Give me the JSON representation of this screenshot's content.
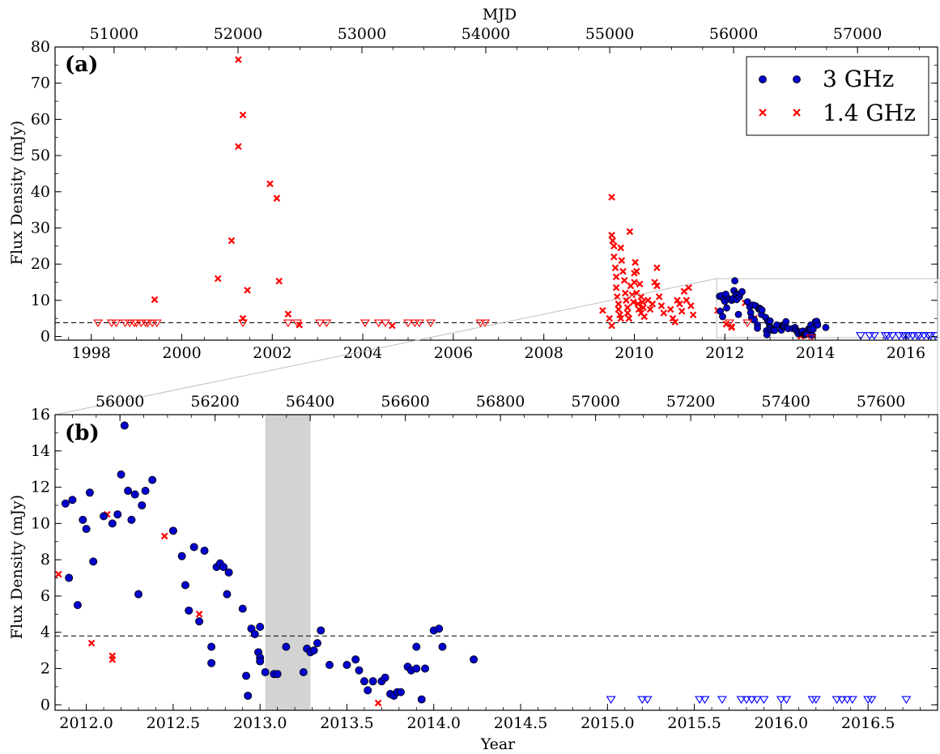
{
  "chart_data": [
    {
      "panel": "(a)",
      "type": "scatter",
      "xlabel": "",
      "ylabel": "Flux Density (mJy)",
      "top_xlabel": "MJD",
      "xlim": [
        1997.2,
        2016.7
      ],
      "ylim": [
        -1,
        80
      ],
      "top_xlim": [
        50509,
        57630
      ],
      "x_ticks": [
        1998,
        2000,
        2002,
        2004,
        2006,
        2008,
        2010,
        2012,
        2014,
        2016
      ],
      "y_ticks": [
        0,
        10,
        20,
        30,
        40,
        50,
        60,
        70,
        80
      ],
      "top_ticks": [
        51000,
        52000,
        53000,
        54000,
        55000,
        56000,
        57000
      ],
      "threshold": 3.8,
      "legend": {
        "position": "top-right",
        "entries": [
          {
            "label": "3 GHz",
            "color": "#0000cc",
            "marker": "circle"
          },
          {
            "label": "1.4 GHz",
            "color": "#ff0000",
            "marker": "x"
          }
        ]
      },
      "series": [
        {
          "name": "1.4 GHz",
          "marker": "x",
          "color": "#ff0000",
          "points": [
            [
              1999.4,
              10.2
            ],
            [
              2000.8,
              16.0
            ],
            [
              2001.1,
              26.5
            ],
            [
              2001.25,
              76.5
            ],
            [
              2001.25,
              52.5
            ],
            [
              2001.35,
              61.2
            ],
            [
              2001.35,
              5.0
            ],
            [
              2001.45,
              12.8
            ],
            [
              2001.95,
              42.2
            ],
            [
              2002.1,
              38.2
            ],
            [
              2002.15,
              15.3
            ],
            [
              2002.35,
              6.2
            ],
            [
              2002.6,
              3.2
            ],
            [
              2004.65,
              3.0
            ],
            [
              2009.3,
              7.2
            ],
            [
              2009.45,
              5.0
            ],
            [
              2009.5,
              3.0
            ],
            [
              2009.5,
              38.5
            ],
            [
              2009.5,
              28.0
            ],
            [
              2009.52,
              26.5
            ],
            [
              2009.55,
              25.0
            ],
            [
              2009.55,
              22.0
            ],
            [
              2009.58,
              19.0
            ],
            [
              2009.6,
              16.5
            ],
            [
              2009.6,
              13.5
            ],
            [
              2009.62,
              11.0
            ],
            [
              2009.65,
              9.0
            ],
            [
              2009.65,
              7.5
            ],
            [
              2009.68,
              6.0
            ],
            [
              2009.7,
              5.0
            ],
            [
              2009.7,
              24.5
            ],
            [
              2009.72,
              21.0
            ],
            [
              2009.75,
              18.0
            ],
            [
              2009.78,
              15.5
            ],
            [
              2009.8,
              12.0
            ],
            [
              2009.82,
              10.0
            ],
            [
              2009.85,
              8.0
            ],
            [
              2009.85,
              6.5
            ],
            [
              2009.88,
              5.0
            ],
            [
              2009.9,
              29.0
            ],
            [
              2009.92,
              14.0
            ],
            [
              2009.95,
              11.5
            ],
            [
              2009.98,
              9.5
            ],
            [
              2010.0,
              17.5
            ],
            [
              2010.0,
              15.0
            ],
            [
              2010.02,
              20.5
            ],
            [
              2010.05,
              18.0
            ],
            [
              2010.05,
              12.0
            ],
            [
              2010.08,
              9.0
            ],
            [
              2010.1,
              7.5
            ],
            [
              2010.12,
              14.5
            ],
            [
              2010.15,
              11.0
            ],
            [
              2010.15,
              6.5
            ],
            [
              2010.18,
              9.5
            ],
            [
              2010.2,
              8.0
            ],
            [
              2010.22,
              5.5
            ],
            [
              2010.3,
              10.0
            ],
            [
              2010.35,
              7.5
            ],
            [
              2010.4,
              9.0
            ],
            [
              2010.45,
              15.0
            ],
            [
              2010.5,
              19.0
            ],
            [
              2010.5,
              14.0
            ],
            [
              2010.55,
              11.0
            ],
            [
              2010.6,
              8.5
            ],
            [
              2010.65,
              6.5
            ],
            [
              2010.8,
              7.5
            ],
            [
              2010.85,
              5.0
            ],
            [
              2010.9,
              4.0
            ],
            [
              2010.95,
              10.0
            ],
            [
              2011.0,
              9.0
            ],
            [
              2011.05,
              7.0
            ],
            [
              2011.1,
              12.5
            ],
            [
              2011.15,
              10.0
            ],
            [
              2011.2,
              13.5
            ],
            [
              2011.25,
              8.5
            ],
            [
              2011.3,
              6.0
            ],
            [
              2011.84,
              7.2
            ],
            [
              2012.03,
              3.4
            ],
            [
              2012.12,
              10.5
            ],
            [
              2012.15,
              2.7
            ],
            [
              2012.15,
              2.5
            ],
            [
              2012.45,
              9.3
            ],
            [
              2012.65,
              5.0
            ],
            [
              2013.68,
              0.1
            ]
          ]
        },
        {
          "name": "3 GHz",
          "marker": "circle",
          "color": "#0000cc",
          "points": [
            [
              2011.88,
              11.1
            ],
            [
              2011.9,
              7.0
            ],
            [
              2011.92,
              11.3
            ],
            [
              2011.95,
              5.5
            ],
            [
              2011.98,
              10.2
            ],
            [
              2012.0,
              9.7
            ],
            [
              2012.02,
              11.7
            ],
            [
              2012.04,
              7.9
            ],
            [
              2012.1,
              10.4
            ],
            [
              2012.15,
              10.0
            ],
            [
              2012.18,
              10.5
            ],
            [
              2012.2,
              12.7
            ],
            [
              2012.22,
              15.4
            ],
            [
              2012.24,
              11.8
            ],
            [
              2012.26,
              10.2
            ],
            [
              2012.28,
              11.6
            ],
            [
              2012.3,
              6.1
            ],
            [
              2012.32,
              11.0
            ],
            [
              2012.34,
              11.8
            ],
            [
              2012.38,
              12.4
            ],
            [
              2012.5,
              9.6
            ],
            [
              2012.55,
              8.2
            ],
            [
              2012.57,
              6.6
            ],
            [
              2012.59,
              5.2
            ],
            [
              2012.62,
              8.7
            ],
            [
              2012.65,
              4.6
            ],
            [
              2012.68,
              8.5
            ],
            [
              2012.72,
              3.2
            ],
            [
              2012.72,
              2.3
            ],
            [
              2012.75,
              7.6
            ],
            [
              2012.77,
              7.8
            ],
            [
              2012.79,
              7.6
            ],
            [
              2012.81,
              6.1
            ],
            [
              2012.82,
              7.3
            ],
            [
              2012.9,
              5.3
            ],
            [
              2012.92,
              1.6
            ],
            [
              2012.93,
              0.5
            ],
            [
              2012.95,
              4.2
            ],
            [
              2012.97,
              3.9
            ],
            [
              2012.99,
              2.9
            ],
            [
              2013.0,
              2.6
            ],
            [
              2013.0,
              2.4
            ],
            [
              2013.0,
              4.3
            ],
            [
              2013.03,
              1.8
            ],
            [
              2013.08,
              1.7
            ],
            [
              2013.1,
              1.7
            ],
            [
              2013.15,
              3.2
            ],
            [
              2013.25,
              1.8
            ],
            [
              2013.27,
              3.1
            ],
            [
              2013.29,
              2.9
            ],
            [
              2013.31,
              3.0
            ],
            [
              2013.33,
              3.4
            ],
            [
              2013.35,
              4.1
            ],
            [
              2013.4,
              2.2
            ],
            [
              2013.5,
              2.2
            ],
            [
              2013.55,
              2.5
            ],
            [
              2013.57,
              1.9
            ],
            [
              2013.6,
              1.3
            ],
            [
              2013.62,
              0.8
            ],
            [
              2013.65,
              1.3
            ],
            [
              2013.7,
              1.3
            ],
            [
              2013.72,
              1.5
            ],
            [
              2013.75,
              0.6
            ],
            [
              2013.77,
              0.5
            ],
            [
              2013.79,
              0.7
            ],
            [
              2013.81,
              0.7
            ],
            [
              2013.85,
              2.1
            ],
            [
              2013.87,
              1.9
            ],
            [
              2013.9,
              3.2
            ],
            [
              2013.9,
              2.0
            ],
            [
              2013.93,
              0.3
            ],
            [
              2013.95,
              2.0
            ],
            [
              2014.0,
              4.1
            ],
            [
              2014.03,
              4.2
            ],
            [
              2014.05,
              3.2
            ],
            [
              2014.23,
              2.5
            ]
          ]
        },
        {
          "name": "1.4 GHz upper limits",
          "marker": "triangle-down",
          "color": "#ff0000",
          "points": [
            [
              1998.15,
              3.8
            ],
            [
              1998.45,
              3.8
            ],
            [
              1998.55,
              3.8
            ],
            [
              1998.75,
              3.8
            ],
            [
              1998.85,
              3.8
            ],
            [
              1998.95,
              3.8
            ],
            [
              1999.0,
              3.8
            ],
            [
              1999.1,
              3.8
            ],
            [
              1999.2,
              3.8
            ],
            [
              1999.25,
              3.8
            ],
            [
              1999.35,
              3.8
            ],
            [
              1999.45,
              3.8
            ],
            [
              2001.35,
              3.8
            ],
            [
              2002.35,
              3.8
            ],
            [
              2002.55,
              3.8
            ],
            [
              2003.05,
              3.8
            ],
            [
              2003.2,
              3.8
            ],
            [
              2004.05,
              3.8
            ],
            [
              2004.35,
              3.8
            ],
            [
              2004.5,
              3.8
            ],
            [
              2005.0,
              3.8
            ],
            [
              2005.15,
              3.8
            ],
            [
              2005.25,
              3.8
            ],
            [
              2005.5,
              3.8
            ],
            [
              2006.6,
              3.8
            ],
            [
              2006.7,
              3.8
            ],
            [
              2012.1,
              3.8
            ],
            [
              2012.5,
              3.8
            ],
            [
              2013.9,
              -0.3
            ]
          ]
        },
        {
          "name": "3 GHz upper limits",
          "marker": "triangle-down",
          "color": "#0000ff",
          "points": [
            [
              2015.0,
              0.3
            ],
            [
              2015.2,
              0.3
            ],
            [
              2015.3,
              0.3
            ],
            [
              2015.55,
              0.3
            ],
            [
              2015.6,
              0.3
            ],
            [
              2015.7,
              0.3
            ],
            [
              2015.85,
              0.3
            ],
            [
              2015.95,
              0.3
            ],
            [
              2016.0,
              0.3
            ],
            [
              2016.05,
              0.3
            ],
            [
              2016.15,
              0.3
            ],
            [
              2016.25,
              0.3
            ],
            [
              2016.3,
              0.3
            ],
            [
              2016.4,
              0.3
            ],
            [
              2016.5,
              0.3
            ],
            [
              2016.55,
              0.3
            ],
            [
              2016.65,
              0.3
            ]
          ]
        }
      ]
    },
    {
      "panel": "(b)",
      "type": "scatter",
      "xlabel": "Year",
      "ylabel": "Flux Density (mJy)",
      "top_xlabel": "",
      "xlim": [
        2011.82,
        2016.9
      ],
      "ylim": [
        -0.3,
        16
      ],
      "top_xlim": [
        55888,
        57743
      ],
      "x_ticks": [
        2012.0,
        2012.5,
        2013.0,
        2013.5,
        2014.0,
        2014.5,
        2015.0,
        2015.5,
        2016.0,
        2016.5
      ],
      "x_tick_labels": [
        "2012.0",
        "2012.5",
        "2013.0",
        "2013.5",
        "2014.0",
        "2014.5",
        "2015.0",
        "2015.5",
        "2016.0",
        "2016.5"
      ],
      "y_ticks": [
        0,
        2,
        4,
        6,
        8,
        10,
        12,
        14,
        16
      ],
      "top_ticks": [
        56000,
        56200,
        56400,
        56600,
        56800,
        57000,
        57200,
        57400,
        57600
      ],
      "threshold": 3.8,
      "shaded_region": [
        2013.03,
        2013.29
      ],
      "series_ref": "same as panel (a), points with year >= 2011.82",
      "upper_limits_3ghz": [
        2015.02,
        2015.2,
        2015.23,
        2015.53,
        2015.56,
        2015.66,
        2015.77,
        2015.8,
        2015.83,
        2015.86,
        2015.9,
        2016.0,
        2016.03,
        2016.18,
        2016.2,
        2016.32,
        2016.35,
        2016.38,
        2016.41,
        2016.5,
        2016.52,
        2016.72
      ],
      "upper_limit_level": 0.3
    }
  ]
}
